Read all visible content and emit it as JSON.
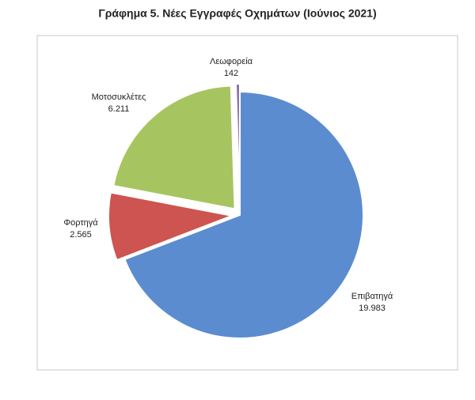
{
  "chart_data": {
    "type": "pie",
    "title": "Γράφημα 5. Νέες Εγγραφές Οχημάτων (Ιούνιος  2021)",
    "categories": [
      "Επιβατηγά",
      "Φορτηγά",
      "Μοτοσυκλέτες",
      "Λεωφορεία"
    ],
    "values": [
      19983,
      2565,
      6211,
      142
    ],
    "value_labels": [
      "19.983",
      "2.565",
      "6.211",
      "142"
    ],
    "colors": [
      "#5b8ccf",
      "#cd5450",
      "#a6c561",
      "#7e66a0"
    ]
  }
}
